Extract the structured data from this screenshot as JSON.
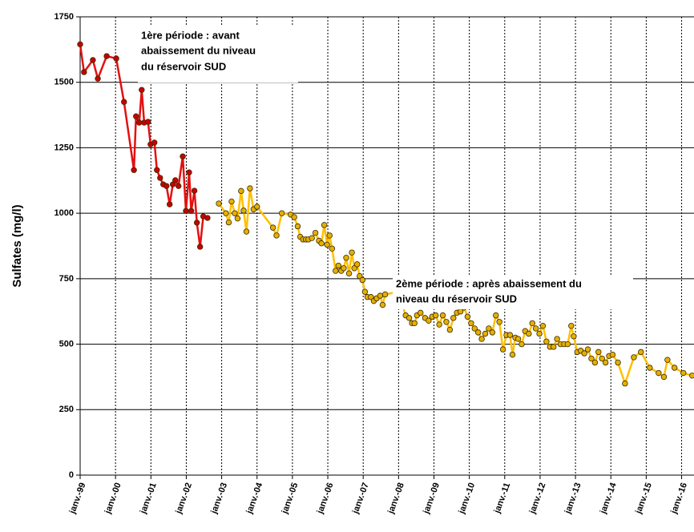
{
  "chart_data": {
    "type": "line",
    "y_label": "Sulfates (mg/l)",
    "ylim": [
      0,
      1750
    ],
    "yticks": [
      0,
      250,
      500,
      750,
      1000,
      1250,
      1500,
      1750
    ],
    "xlim": [
      1999,
      2016.35
    ],
    "xticks": [
      {
        "value": 1999,
        "label": "janv.-99"
      },
      {
        "value": 2000,
        "label": "janv.-00"
      },
      {
        "value": 2001,
        "label": "janv.-01"
      },
      {
        "value": 2002,
        "label": "janv.-02"
      },
      {
        "value": 2003,
        "label": "janv.-03"
      },
      {
        "value": 2004,
        "label": "janv.-04"
      },
      {
        "value": 2005,
        "label": "janv.-05"
      },
      {
        "value": 2006,
        "label": "janv.-06"
      },
      {
        "value": 2007,
        "label": "janv.-07"
      },
      {
        "value": 2008,
        "label": "janv.-08"
      },
      {
        "value": 2009,
        "label": "janv.-09"
      },
      {
        "value": 2010,
        "label": "janv.-10"
      },
      {
        "value": 2011,
        "label": "janv.-11"
      },
      {
        "value": 2012,
        "label": "janv.-12"
      },
      {
        "value": 2013,
        "label": "janv.-13"
      },
      {
        "value": 2014,
        "label": "janv.-14"
      },
      {
        "value": 2015,
        "label": "janv.-15"
      },
      {
        "value": 2016,
        "label": "janv.-16"
      }
    ],
    "grid": true,
    "series": [
      {
        "color": "#e41010",
        "marker_color": "#c80000",
        "x": [
          1999.0,
          1999.11,
          1999.36,
          1999.5,
          1999.75,
          2000.02,
          2000.24,
          2000.52,
          2000.58,
          2000.67,
          2000.74,
          2000.81,
          2000.92,
          2000.99,
          2001.1,
          2001.17,
          2001.26,
          2001.35,
          2001.44,
          2001.53,
          2001.62,
          2001.69,
          2001.78,
          2001.9,
          2001.99,
          2002.08,
          2002.14,
          2002.23,
          2002.3,
          2002.39,
          2002.48,
          2002.6
        ],
        "values": [
          1645,
          1539,
          1585,
          1514,
          1600,
          1591,
          1425,
          1165,
          1370,
          1346,
          1471,
          1346,
          1349,
          1263,
          1270,
          1165,
          1135,
          1110,
          1104,
          1034,
          1110,
          1126,
          1104,
          1217,
          1009,
          1156,
          1009,
          1086,
          964,
          872,
          988,
          982
        ]
      },
      {
        "color": "#ffc000",
        "marker_color": "#e6b000",
        "x": [
          2002.92,
          2003.12,
          2003.2,
          2003.28,
          2003.37,
          2003.45,
          2003.55,
          2003.62,
          2003.7,
          2003.8,
          2003.9,
          2004.0,
          2004.45,
          2004.55,
          2004.7,
          2004.95,
          2005.05,
          2005.15,
          2005.22,
          2005.3,
          2005.38,
          2005.45,
          2005.55,
          2005.65,
          2005.75,
          2005.82,
          2005.9,
          2005.98,
          2006.05,
          2006.12,
          2006.22,
          2006.3,
          2006.38,
          2006.45,
          2006.52,
          2006.6,
          2006.68,
          2006.75,
          2006.83,
          2006.9,
          2006.98,
          2007.05,
          2007.12,
          2007.22,
          2007.3,
          2007.38,
          2007.48,
          2007.55,
          2007.62,
          2008.0,
          2008.2,
          2008.3,
          2008.38,
          2008.45,
          2008.52,
          2008.62,
          2008.75,
          2008.85,
          2008.95,
          2009.05,
          2009.15,
          2009.25,
          2009.35,
          2009.45,
          2009.55,
          2009.65,
          2009.75,
          2009.85,
          2009.95,
          2010.05,
          2010.15,
          2010.25,
          2010.35,
          2010.45,
          2010.55,
          2010.65,
          2010.75,
          2010.85,
          2010.95,
          2011.05,
          2011.15,
          2011.22,
          2011.3,
          2011.38,
          2011.48,
          2011.58,
          2011.68,
          2011.78,
          2011.88,
          2011.98,
          2012.08,
          2012.18,
          2012.28,
          2012.38,
          2012.48,
          2012.58,
          2012.68,
          2012.78,
          2012.88,
          2012.95,
          2013.05,
          2013.15,
          2013.25,
          2013.35,
          2013.45,
          2013.55,
          2013.65,
          2013.75,
          2013.85,
          2013.95,
          2014.05,
          2014.2,
          2014.4,
          2014.65,
          2014.85,
          2015.1,
          2015.35,
          2015.5,
          2015.6,
          2015.8,
          2016.05,
          2016.3
        ],
        "values": [
          1037,
          1000,
          965,
          1045,
          1000,
          980,
          1085,
          1010,
          930,
          1095,
          1015,
          1025,
          945,
          915,
          1000,
          995,
          985,
          950,
          910,
          900,
          900,
          900,
          905,
          925,
          895,
          885,
          955,
          880,
          915,
          865,
          780,
          800,
          780,
          790,
          830,
          770,
          850,
          790,
          805,
          760,
          745,
          700,
          680,
          680,
          665,
          675,
          685,
          650,
          690,
          700,
          610,
          600,
          580,
          580,
          610,
          620,
          600,
          590,
          605,
          610,
          575,
          610,
          585,
          555,
          600,
          620,
          625,
          640,
          605,
          580,
          560,
          545,
          520,
          540,
          560,
          545,
          610,
          585,
          480,
          535,
          535,
          460,
          525,
          520,
          500,
          550,
          540,
          580,
          560,
          540,
          570,
          510,
          490,
          490,
          520,
          500,
          500,
          500,
          570,
          530,
          470,
          475,
          465,
          480,
          445,
          430,
          470,
          445,
          430,
          455,
          460,
          430,
          350,
          450,
          470,
          410,
          390,
          375,
          440,
          410,
          390,
          380
        ]
      }
    ],
    "annotations": [
      {
        "lines": [
          "1ère période : avant",
          "abaissement  du niveau",
          "du réservoir SUD"
        ]
      },
      {
        "lines": [
          "2ème période : après abaissement  du",
          "niveau du réservoir SUD"
        ]
      }
    ]
  }
}
